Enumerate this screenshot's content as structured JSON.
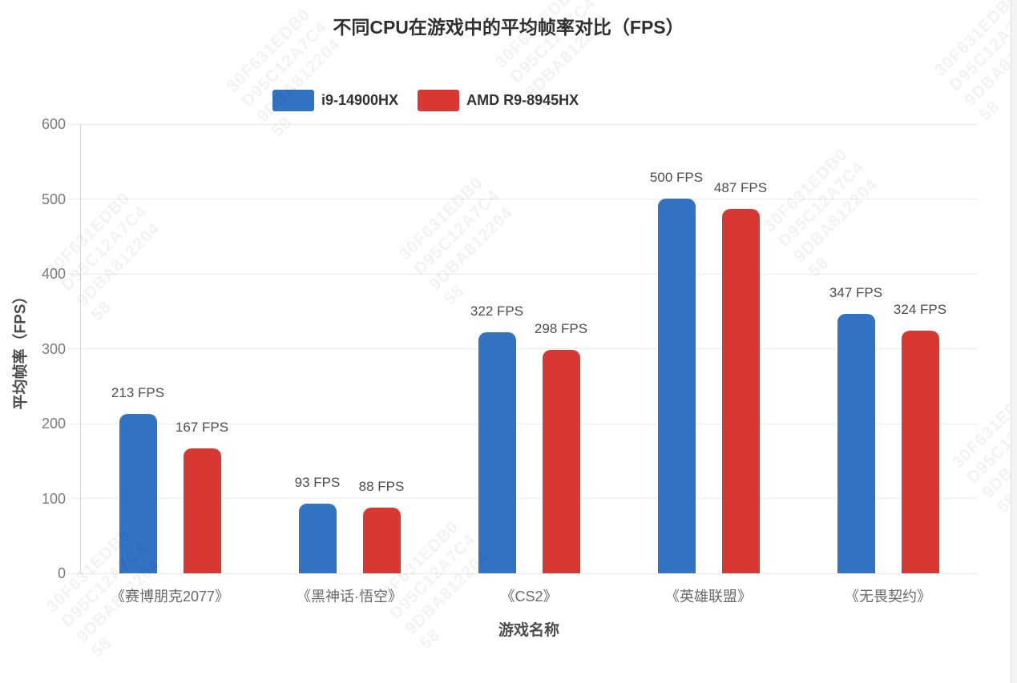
{
  "title": "不同CPU在游戏中的平均帧率对比（FPS）",
  "legend": [
    {
      "label": "i9-14900HX",
      "color": "#3273C4"
    },
    {
      "label": "AMD R9-8945HX",
      "color": "#D93832"
    }
  ],
  "axes": {
    "x_title": "游戏名称",
    "y_title": "平均帧率（FPS）",
    "y_ticks": [
      0,
      100,
      200,
      300,
      400,
      500,
      600
    ]
  },
  "chart_data": {
    "type": "bar",
    "title": "不同CPU在游戏中的平均帧率对比（FPS）",
    "categories": [
      "《赛博朋克2077》",
      "《黑神话·悟空》",
      "《CS2》",
      "《英雄联盟》",
      "《无畏契约》"
    ],
    "series": [
      {
        "name": "i9-14900HX",
        "color": "#3273C4",
        "values": [
          213,
          93,
          322,
          500,
          347
        ]
      },
      {
        "name": "AMD R9-8945HX",
        "color": "#D93832",
        "values": [
          167,
          88,
          298,
          487,
          324
        ]
      }
    ],
    "value_label_suffix": " FPS",
    "xlabel": "游戏名称",
    "ylabel": "平均帧率（FPS）",
    "ylim": [
      0,
      600
    ],
    "grid": true,
    "legend_position": "top"
  },
  "watermark": {
    "lines": [
      "30F631EDB0",
      "D95C12A7C4",
      "9DBA812204",
      "58"
    ]
  }
}
